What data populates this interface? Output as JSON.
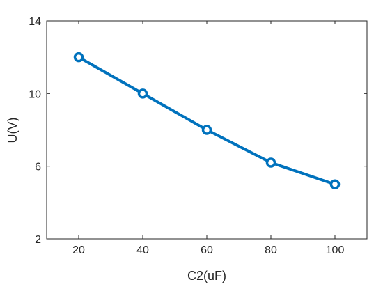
{
  "chart_data": {
    "type": "line",
    "x": [
      20,
      40,
      60,
      80,
      100
    ],
    "series": [
      {
        "values": [
          12.0,
          10.0,
          8.0,
          6.2,
          5.0
        ],
        "color": "#0072BD",
        "marker": "circle"
      }
    ],
    "xlabel": "C2(uF)",
    "ylabel": "U(V)",
    "xlim": [
      10,
      110
    ],
    "ylim": [
      2,
      14
    ],
    "xticks": [
      "20",
      "40",
      "60",
      "80",
      "100"
    ],
    "yticks": [
      "2",
      "6",
      "10",
      "14"
    ],
    "grid": false,
    "box": true
  }
}
